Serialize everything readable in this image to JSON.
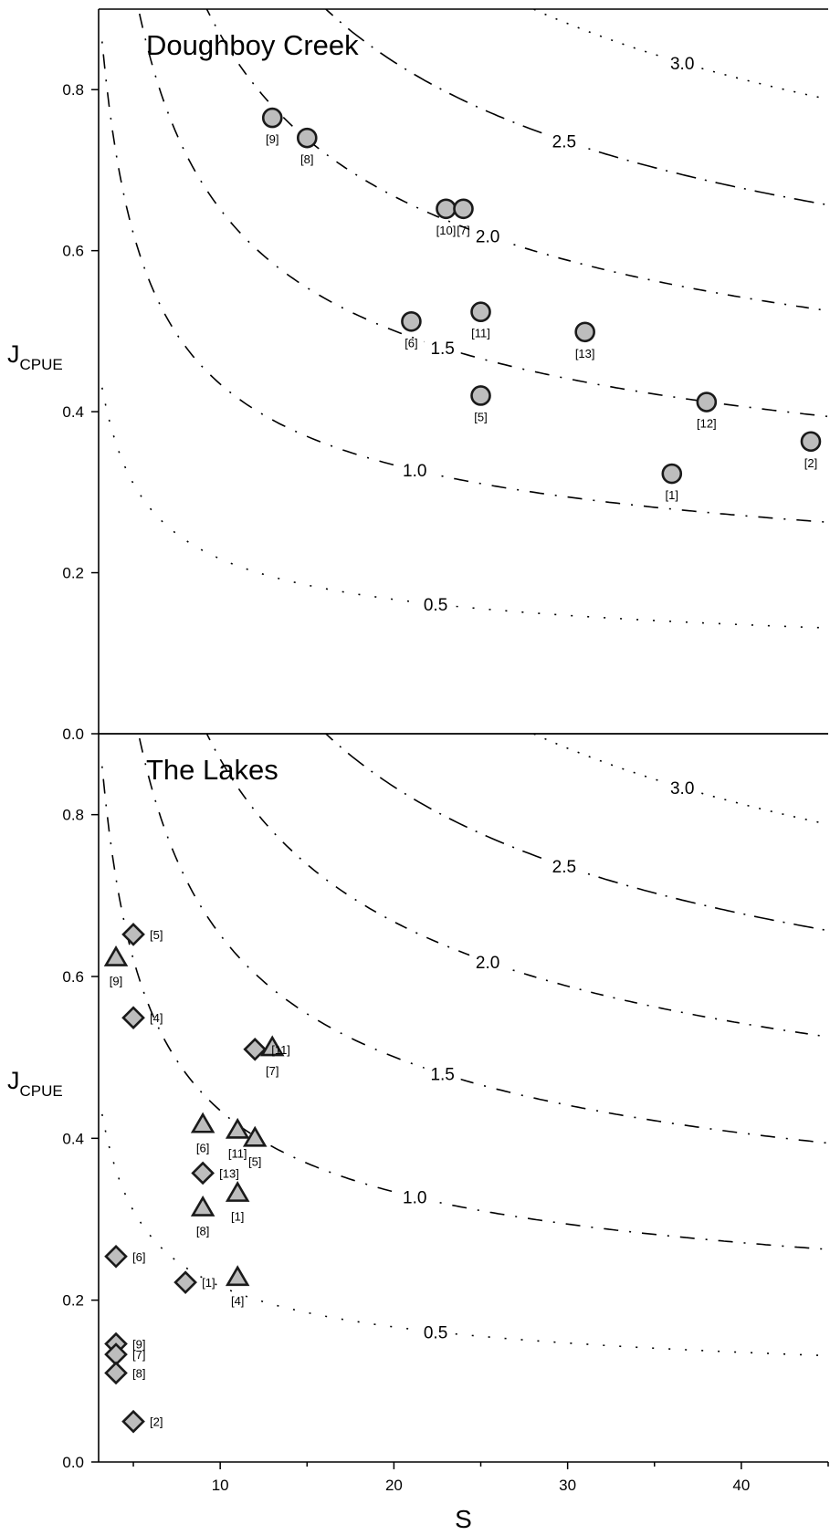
{
  "chart_data": [
    {
      "type": "scatter",
      "title": "Doughboy Creek",
      "xlabel": "S",
      "ylabel": "J",
      "ylabel_sub": "CPUE",
      "xlim": [
        3,
        45
      ],
      "ylim": [
        0,
        0.9
      ],
      "xticks": [
        "10",
        "20",
        "30",
        "40"
      ],
      "yticks": [
        "0.0",
        "0.2",
        "0.4",
        "0.6",
        "0.8"
      ],
      "contours": [
        {
          "label": "0.5",
          "level": 0.5
        },
        {
          "label": "1.0",
          "level": 1.0
        },
        {
          "label": "1.5",
          "level": 1.5
        },
        {
          "label": "2.0",
          "level": 2.0
        },
        {
          "label": "2.5",
          "level": 2.5
        },
        {
          "label": "3.0",
          "level": 3.0
        }
      ],
      "series": [
        {
          "marker": "circle",
          "points": [
            {
              "x": 13,
              "y": 0.765,
              "label": "[9]"
            },
            {
              "x": 15,
              "y": 0.74,
              "label": "[8]"
            },
            {
              "x": 23,
              "y": 0.652,
              "label": "[10]"
            },
            {
              "x": 24,
              "y": 0.652,
              "label": "[7]"
            },
            {
              "x": 21,
              "y": 0.512,
              "label": "[6]"
            },
            {
              "x": 25,
              "y": 0.524,
              "label": "[11]"
            },
            {
              "x": 31,
              "y": 0.499,
              "label": "[13]"
            },
            {
              "x": 25,
              "y": 0.42,
              "label": "[5]"
            },
            {
              "x": 38,
              "y": 0.412,
              "label": "[12]"
            },
            {
              "x": 44,
              "y": 0.363,
              "label": "[2]"
            },
            {
              "x": 36,
              "y": 0.323,
              "label": "[1]"
            }
          ]
        }
      ]
    },
    {
      "type": "scatter",
      "title": "The Lakes",
      "xlabel": "S",
      "ylabel": "J",
      "ylabel_sub": "CPUE",
      "xlim": [
        3,
        45
      ],
      "ylim": [
        0,
        0.9
      ],
      "xticks": [
        "10",
        "20",
        "30",
        "40"
      ],
      "yticks": [
        "0.0",
        "0.2",
        "0.4",
        "0.6",
        "0.8"
      ],
      "contours": [
        {
          "label": "0.5",
          "level": 0.5
        },
        {
          "label": "1.0",
          "level": 1.0
        },
        {
          "label": "1.5",
          "level": 1.5
        },
        {
          "label": "2.0",
          "level": 2.0
        },
        {
          "label": "2.5",
          "level": 2.5
        },
        {
          "label": "3.0",
          "level": 3.0
        }
      ],
      "series": [
        {
          "marker": "diamond",
          "points": [
            {
              "x": 5,
              "y": 0.652,
              "label": "[5]"
            },
            {
              "x": 5,
              "y": 0.549,
              "label": "[4]"
            },
            {
              "x": 12,
              "y": 0.51,
              "label": "[11]"
            },
            {
              "x": 9,
              "y": 0.357,
              "label": "[13]"
            },
            {
              "x": 4,
              "y": 0.254,
              "label": "[6]"
            },
            {
              "x": 8,
              "y": 0.222,
              "label": "[1]"
            },
            {
              "x": 4,
              "y": 0.146,
              "label": "[9]"
            },
            {
              "x": 4,
              "y": 0.133,
              "label": "[7]"
            },
            {
              "x": 4,
              "y": 0.11,
              "label": "[8]"
            },
            {
              "x": 5,
              "y": 0.05,
              "label": "[2]"
            }
          ]
        },
        {
          "marker": "triangle",
          "points": [
            {
              "x": 4,
              "y": 0.623,
              "label": "[9]"
            },
            {
              "x": 13,
              "y": 0.512,
              "label": "[7]"
            },
            {
              "x": 9,
              "y": 0.417,
              "label": "[6]"
            },
            {
              "x": 11,
              "y": 0.41,
              "label": "[11]"
            },
            {
              "x": 12,
              "y": 0.4,
              "label": "[5]"
            },
            {
              "x": 11,
              "y": 0.332,
              "label": "[1]"
            },
            {
              "x": 9,
              "y": 0.314,
              "label": "[8]"
            },
            {
              "x": 11,
              "y": 0.228,
              "label": "[4]"
            }
          ]
        }
      ]
    }
  ],
  "colors": {
    "marker_fill": "#bdbdbd",
    "marker_stroke": "#1a1a1a",
    "axis": "#000000"
  }
}
